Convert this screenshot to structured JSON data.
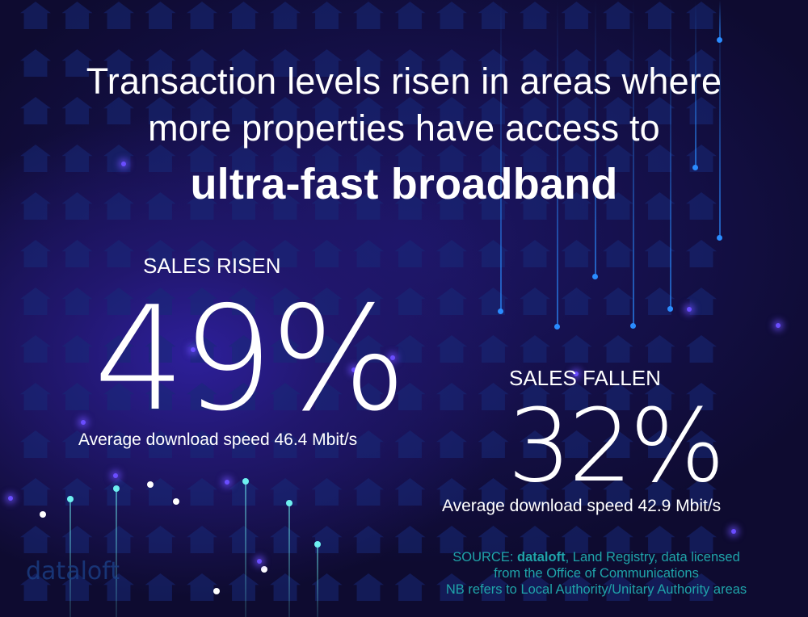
{
  "headline": {
    "line1": "Transaction levels risen in areas where",
    "line2": "more properties have access to",
    "line3": "ultra-fast broadband"
  },
  "risen": {
    "label": "SALES RISEN",
    "value": "49%",
    "speed": "Average download speed 46.4 Mbit/s"
  },
  "fallen": {
    "label": "SALES FALLEN",
    "value": "32%",
    "speed": "Average download speed 42.9 Mbit/s"
  },
  "source": {
    "prefix": "SOURCE: ",
    "brand": "dataloft",
    "rest": ", Land Registry, data licensed",
    "line2": "from the Office of Communications",
    "line3": "NB refers to Local Authority/Unitary Authority areas"
  },
  "watermark": "dataloft",
  "colors": {
    "background": "#110d36",
    "source_text": "#1fa4aa",
    "dot_cyan": "#6ef0f0",
    "dot_blue": "#2a8cff",
    "house": "#172a78"
  }
}
